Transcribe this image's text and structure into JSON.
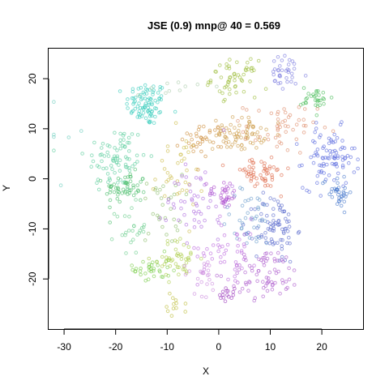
{
  "chart_data": {
    "type": "scatter",
    "title": "JSE (0.9) mnp@ 40 = 0.569",
    "xlabel": "X",
    "ylabel": "Y",
    "xlim": [
      -33,
      28
    ],
    "ylim": [
      -30,
      26
    ],
    "xticks": [
      -30,
      -20,
      -10,
      0,
      10,
      20
    ],
    "yticks": [
      -20,
      -10,
      0,
      10,
      20
    ],
    "xtick_labels": [
      "-30",
      "-20",
      "-10",
      "0",
      "10",
      "20"
    ],
    "ytick_labels": [
      "-20",
      "-10",
      "0",
      "10",
      "20"
    ],
    "grid": false,
    "legend": "none",
    "marker": "open-circle",
    "clusters": [
      {
        "cx": -14.0,
        "cy": 15.0,
        "sx": 2.0,
        "sy": 2.2,
        "n": 90,
        "color": "#33ccbb"
      },
      {
        "cx": -20.0,
        "cy": 4.0,
        "sx": 3.0,
        "sy": 3.5,
        "n": 80,
        "color": "#55cc99"
      },
      {
        "cx": -18.0,
        "cy": -2.0,
        "sx": 2.0,
        "sy": 1.6,
        "n": 55,
        "color": "#44bb66"
      },
      {
        "cx": -17.0,
        "cy": -10.0,
        "sx": 1.5,
        "sy": 2.5,
        "n": 25,
        "color": "#66cc88"
      },
      {
        "cx": -13.0,
        "cy": -18.0,
        "sx": 1.8,
        "sy": 1.5,
        "n": 35,
        "color": "#77cc44"
      },
      {
        "cx": -8.0,
        "cy": -16.0,
        "sx": 2.2,
        "sy": 2.0,
        "n": 45,
        "color": "#aacc44"
      },
      {
        "cx": -8.0,
        "cy": -25.0,
        "sx": 1.0,
        "sy": 1.2,
        "n": 12,
        "color": "#bbbb33"
      },
      {
        "cx": -11.0,
        "cy": -6.0,
        "sx": 2.0,
        "sy": 3.5,
        "n": 30,
        "color": "#88bb66"
      },
      {
        "cx": -8.0,
        "cy": 1.0,
        "sx": 2.5,
        "sy": 4.0,
        "n": 35,
        "color": "#ccbb44"
      },
      {
        "cx": 3.0,
        "cy": 20.0,
        "sx": 2.2,
        "sy": 1.8,
        "n": 55,
        "color": "#99bb33"
      },
      {
        "cx": 13.0,
        "cy": 21.0,
        "sx": 2.2,
        "sy": 1.8,
        "n": 35,
        "color": "#7777dd"
      },
      {
        "cx": 19.0,
        "cy": 16.0,
        "sx": 1.5,
        "sy": 1.2,
        "n": 30,
        "color": "#44bb55"
      },
      {
        "cx": 4.0,
        "cy": 9.0,
        "sx": 2.5,
        "sy": 1.6,
        "n": 75,
        "color": "#cc9944"
      },
      {
        "cx": -3.0,
        "cy": 8.0,
        "sx": 2.0,
        "sy": 1.6,
        "n": 35,
        "color": "#cc8833"
      },
      {
        "cx": 12.0,
        "cy": 10.0,
        "sx": 3.5,
        "sy": 2.5,
        "n": 50,
        "color": "#dd8866"
      },
      {
        "cx": 8.0,
        "cy": 1.0,
        "sx": 3.0,
        "sy": 1.5,
        "n": 55,
        "color": "#dd6644"
      },
      {
        "cx": 21.5,
        "cy": 4.0,
        "sx": 2.5,
        "sy": 3.0,
        "n": 90,
        "color": "#5566dd"
      },
      {
        "cx": 23.0,
        "cy": -2.5,
        "sx": 1.5,
        "sy": 1.6,
        "n": 35,
        "color": "#4477cc"
      },
      {
        "cx": -4.0,
        "cy": -4.0,
        "sx": 3.0,
        "sy": 4.0,
        "n": 55,
        "color": "#aa66dd"
      },
      {
        "cx": 1.0,
        "cy": -3.0,
        "sx": 1.5,
        "sy": 1.5,
        "n": 30,
        "color": "#aa44cc"
      },
      {
        "cx": 11.0,
        "cy": -10.0,
        "sx": 2.0,
        "sy": 3.5,
        "n": 80,
        "color": "#5566cc"
      },
      {
        "cx": 6.0,
        "cy": -8.0,
        "sx": 3.0,
        "sy": 3.0,
        "n": 40,
        "color": "#6699cc"
      },
      {
        "cx": 9.0,
        "cy": -19.0,
        "sx": 3.5,
        "sy": 2.5,
        "n": 75,
        "color": "#aa55cc"
      },
      {
        "cx": 2.0,
        "cy": -14.0,
        "sx": 3.0,
        "sy": 3.0,
        "n": 45,
        "color": "#bb66dd"
      },
      {
        "cx": -3.0,
        "cy": -19.0,
        "sx": 2.0,
        "sy": 2.0,
        "n": 25,
        "color": "#cc88dd"
      },
      {
        "cx": 1.5,
        "cy": -23.0,
        "sx": 0.8,
        "sy": 0.7,
        "n": 15,
        "color": "#9933bb"
      },
      {
        "cx": -29.0,
        "cy": 9.0,
        "sx": 2.0,
        "sy": 5.0,
        "n": 6,
        "color": "#66ccbb"
      },
      {
        "cx": -10.0,
        "cy": 18.0,
        "sx": 3.0,
        "sy": 1.0,
        "n": 10,
        "color": "#aaccaa"
      }
    ]
  }
}
